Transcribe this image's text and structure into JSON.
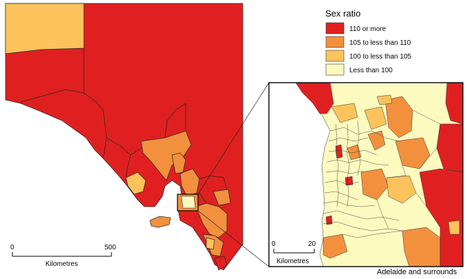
{
  "legend": {
    "title": "Sex ratio",
    "items": [
      {
        "label": "110 or more",
        "color": "#e02020"
      },
      {
        "label": "105 to less than 110",
        "color": "#f3903e"
      },
      {
        "label": "100 to less than 105",
        "color": "#fcc35c"
      },
      {
        "label": "Less than 100",
        "color": "#fdfac0"
      }
    ]
  },
  "main_map": {
    "scale_bar": {
      "start": "0",
      "end": "500",
      "unit": "Kilometres"
    }
  },
  "inset_map": {
    "caption": "Adelaide and surrounds",
    "scale_bar": {
      "start": "0",
      "end": "20",
      "unit": "Kilometres"
    }
  },
  "colors": {
    "border": "#222222",
    "water": "#ffffff"
  }
}
